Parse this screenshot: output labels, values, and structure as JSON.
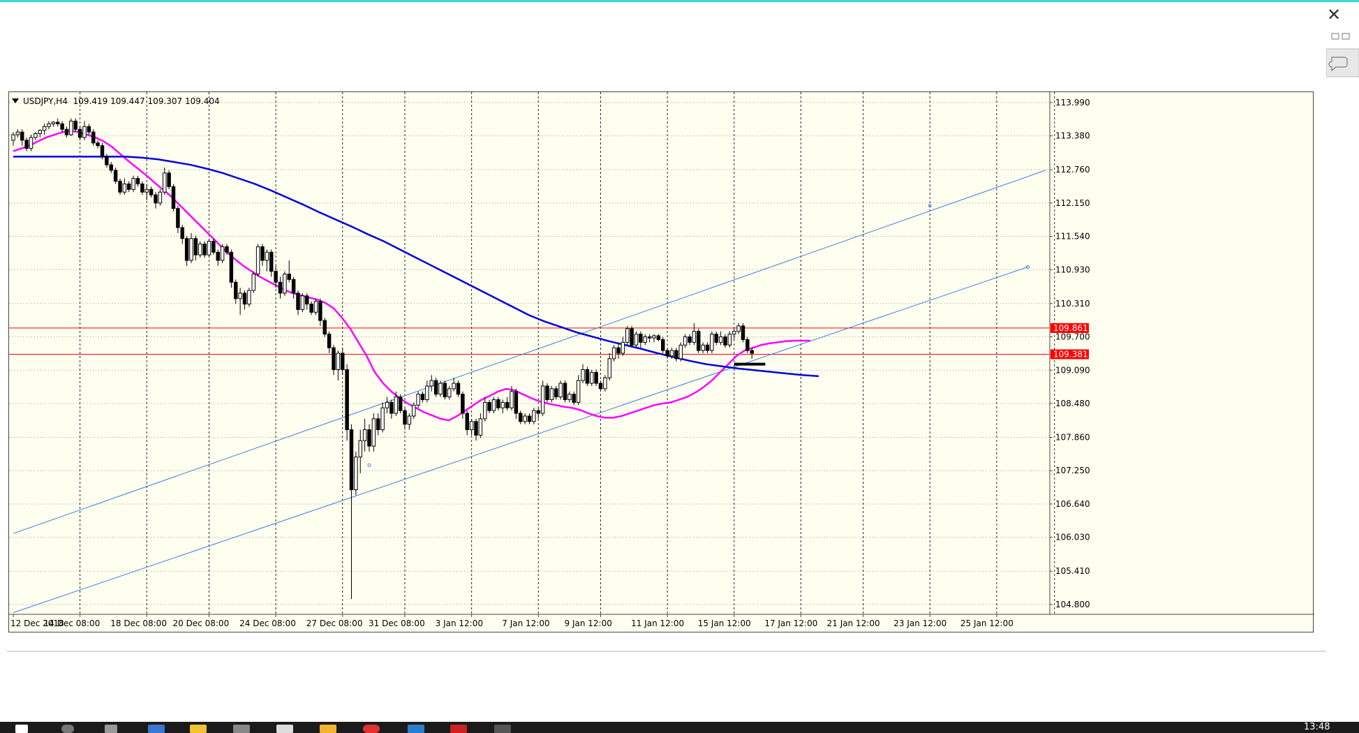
{
  "window": {
    "close_icon": "close-icon",
    "accent_color": "#3fd6d6"
  },
  "chart_header": {
    "symbol": "USDJPY,H4",
    "open": "109.419",
    "high": "109.447",
    "low": "109.307",
    "close": "109.404"
  },
  "price_markers": [
    {
      "label": "109.861",
      "value": 109.861,
      "color": "#ff0000"
    },
    {
      "label": "109.381",
      "value": 109.381,
      "color": "#ff0000"
    }
  ],
  "taskbar": {
    "clock": "13:48"
  },
  "chart_data": {
    "type": "candlestick",
    "title": "",
    "xlabel": "",
    "ylabel": "",
    "grid": true,
    "background": "#fffff0",
    "ylim": [
      104.62,
      114.18
    ],
    "y_ticks": [
      "113.990",
      "113.380",
      "112.760",
      "112.150",
      "111.540",
      "110.930",
      "110.310",
      "109.700",
      "109.090",
      "108.480",
      "107.860",
      "107.250",
      "106.640",
      "106.030",
      "105.410",
      "104.800"
    ],
    "x_ticks": [
      "12 Dec 2018",
      "14 Dec 08:00",
      "18 Dec 08:00",
      "20 Dec 08:00",
      "24 Dec 08:00",
      "27 Dec 08:00",
      "31 Dec 08:00",
      "3 Jan 12:00",
      "7 Jan 12:00",
      "9 Jan 12:00",
      "11 Jan 12:00",
      "15 Jan 12:00",
      "17 Jan 12:00",
      "21 Jan 12:00",
      "23 Jan 12:00",
      "25 Jan 12:00"
    ],
    "bars_count": 232,
    "candles": [
      [
        113.3,
        113.45,
        113.2,
        113.4
      ],
      [
        113.4,
        113.5,
        113.35,
        113.45
      ],
      [
        113.45,
        113.5,
        113.2,
        113.3
      ],
      [
        113.3,
        113.35,
        113.1,
        113.15
      ],
      [
        113.15,
        113.4,
        113.1,
        113.35
      ],
      [
        113.35,
        113.45,
        113.3,
        113.42
      ],
      [
        113.42,
        113.5,
        113.35,
        113.48
      ],
      [
        113.48,
        113.6,
        113.4,
        113.55
      ],
      [
        113.55,
        113.65,
        113.5,
        113.6
      ],
      [
        113.6,
        113.65,
        113.55,
        113.63
      ],
      [
        113.63,
        113.7,
        113.55,
        113.6
      ],
      [
        113.6,
        113.65,
        113.45,
        113.5
      ],
      [
        113.5,
        113.55,
        113.35,
        113.4
      ],
      [
        113.4,
        113.7,
        113.38,
        113.65
      ],
      [
        113.65,
        113.7,
        113.45,
        113.5
      ],
      [
        113.5,
        113.55,
        113.3,
        113.35
      ],
      [
        113.35,
        113.65,
        113.3,
        113.55
      ],
      [
        113.55,
        113.6,
        113.4,
        113.45
      ],
      [
        113.45,
        113.5,
        113.2,
        113.25
      ],
      [
        113.25,
        113.3,
        113.15,
        113.2
      ],
      [
        113.2,
        113.25,
        112.95,
        113.0
      ],
      [
        113.0,
        113.05,
        112.8,
        112.85
      ],
      [
        112.85,
        112.9,
        112.7,
        112.75
      ],
      [
        112.75,
        112.8,
        112.5,
        112.55
      ],
      [
        112.55,
        112.6,
        112.3,
        112.35
      ],
      [
        112.35,
        112.6,
        112.3,
        112.5
      ],
      [
        112.5,
        112.55,
        112.35,
        112.4
      ],
      [
        112.4,
        112.65,
        112.35,
        112.6
      ],
      [
        112.6,
        112.65,
        112.45,
        112.5
      ],
      [
        112.5,
        112.55,
        112.3,
        112.35
      ],
      [
        112.35,
        112.5,
        112.2,
        112.4
      ],
      [
        112.4,
        112.45,
        112.25,
        112.3
      ],
      [
        112.3,
        112.35,
        112.05,
        112.15
      ],
      [
        112.15,
        112.4,
        112.1,
        112.35
      ],
      [
        112.35,
        112.8,
        112.3,
        112.7
      ],
      [
        112.7,
        112.75,
        112.4,
        112.45
      ],
      [
        112.45,
        112.5,
        112.0,
        112.05
      ],
      [
        112.05,
        112.1,
        111.6,
        111.7
      ],
      [
        111.7,
        111.75,
        111.4,
        111.5
      ],
      [
        111.5,
        111.55,
        111.0,
        111.1
      ],
      [
        111.1,
        111.6,
        111.05,
        111.5
      ],
      [
        111.5,
        111.55,
        111.1,
        111.2
      ],
      [
        111.2,
        111.45,
        111.15,
        111.4
      ],
      [
        111.4,
        111.45,
        111.15,
        111.2
      ],
      [
        111.2,
        111.5,
        111.15,
        111.45
      ],
      [
        111.45,
        111.5,
        111.2,
        111.25
      ],
      [
        111.25,
        111.3,
        111.0,
        111.1
      ],
      [
        111.1,
        111.4,
        111.05,
        111.35
      ],
      [
        111.35,
        111.4,
        111.2,
        111.25
      ],
      [
        111.25,
        111.3,
        110.6,
        110.7
      ],
      [
        110.7,
        110.75,
        110.3,
        110.4
      ],
      [
        110.4,
        110.6,
        110.1,
        110.5
      ],
      [
        110.5,
        110.55,
        110.2,
        110.3
      ],
      [
        110.3,
        110.6,
        110.25,
        110.55
      ],
      [
        110.55,
        110.9,
        110.5,
        110.85
      ],
      [
        110.85,
        111.4,
        110.8,
        111.35
      ],
      [
        111.35,
        111.4,
        111.0,
        111.1
      ],
      [
        111.1,
        111.3,
        110.9,
        111.25
      ],
      [
        111.25,
        111.3,
        110.8,
        110.9
      ],
      [
        110.9,
        111.0,
        110.6,
        110.7
      ],
      [
        110.7,
        110.8,
        110.4,
        110.5
      ],
      [
        110.5,
        110.9,
        110.45,
        110.85
      ],
      [
        110.85,
        111.1,
        110.7,
        110.75
      ],
      [
        110.75,
        110.8,
        110.4,
        110.5
      ],
      [
        110.5,
        110.55,
        110.1,
        110.2
      ],
      [
        110.2,
        110.5,
        110.15,
        110.45
      ],
      [
        110.45,
        110.5,
        110.2,
        110.3
      ],
      [
        110.3,
        110.35,
        110.1,
        110.15
      ],
      [
        110.15,
        110.4,
        110.1,
        110.35
      ],
      [
        110.35,
        110.4,
        109.9,
        110.0
      ],
      [
        110.0,
        110.05,
        109.7,
        109.75
      ],
      [
        109.75,
        109.8,
        109.4,
        109.5
      ],
      [
        109.5,
        109.55,
        109.0,
        109.1
      ],
      [
        109.1,
        109.45,
        108.9,
        109.4
      ],
      [
        109.4,
        109.5,
        109.0,
        109.1
      ],
      [
        109.1,
        109.2,
        107.8,
        108.0
      ],
      [
        108.0,
        108.1,
        104.9,
        106.9
      ],
      [
        106.9,
        107.6,
        106.8,
        107.5
      ],
      [
        107.5,
        108.0,
        107.2,
        107.8
      ],
      [
        107.8,
        108.2,
        107.6,
        108.0
      ],
      [
        108.0,
        108.1,
        107.6,
        107.7
      ],
      [
        107.7,
        108.3,
        107.6,
        108.2
      ],
      [
        108.2,
        108.3,
        107.9,
        108.0
      ],
      [
        108.0,
        108.5,
        107.95,
        108.4
      ],
      [
        108.4,
        108.6,
        108.3,
        108.5
      ],
      [
        108.5,
        108.55,
        108.2,
        108.3
      ],
      [
        108.3,
        108.7,
        108.25,
        108.6
      ],
      [
        108.6,
        108.65,
        108.3,
        108.35
      ],
      [
        108.35,
        108.4,
        108.0,
        108.1
      ],
      [
        108.1,
        108.3,
        108.0,
        108.25
      ],
      [
        108.25,
        108.5,
        108.2,
        108.45
      ],
      [
        108.45,
        108.7,
        108.4,
        108.65
      ],
      [
        108.65,
        108.7,
        108.5,
        108.55
      ],
      [
        108.55,
        108.9,
        108.5,
        108.8
      ],
      [
        108.8,
        109.0,
        108.7,
        108.9
      ],
      [
        108.9,
        108.95,
        108.6,
        108.65
      ],
      [
        108.65,
        108.9,
        108.6,
        108.85
      ],
      [
        108.85,
        108.9,
        108.55,
        108.6
      ],
      [
        108.6,
        108.8,
        108.55,
        108.75
      ],
      [
        108.75,
        108.95,
        108.7,
        108.85
      ],
      [
        108.85,
        108.9,
        108.6,
        108.65
      ],
      [
        108.65,
        108.7,
        108.2,
        108.3
      ],
      [
        108.3,
        108.35,
        107.9,
        108.0
      ],
      [
        108.0,
        108.2,
        107.9,
        108.15
      ],
      [
        108.15,
        108.2,
        107.8,
        107.9
      ],
      [
        107.9,
        108.3,
        107.85,
        108.2
      ],
      [
        108.2,
        108.6,
        108.15,
        108.5
      ],
      [
        108.5,
        108.55,
        108.3,
        108.35
      ],
      [
        108.35,
        108.6,
        108.3,
        108.55
      ],
      [
        108.55,
        108.6,
        108.35,
        108.4
      ],
      [
        108.4,
        108.55,
        108.3,
        108.5
      ],
      [
        108.5,
        108.6,
        108.35,
        108.4
      ],
      [
        108.4,
        108.8,
        108.35,
        108.7
      ],
      [
        108.7,
        108.75,
        108.2,
        108.3
      ],
      [
        108.3,
        108.35,
        108.1,
        108.15
      ],
      [
        108.15,
        108.3,
        108.1,
        108.25
      ],
      [
        108.25,
        108.3,
        108.1,
        108.15
      ],
      [
        108.15,
        108.4,
        108.1,
        108.35
      ],
      [
        108.35,
        108.4,
        108.2,
        108.3
      ],
      [
        108.3,
        108.9,
        108.25,
        108.8
      ],
      [
        108.8,
        108.85,
        108.5,
        108.55
      ],
      [
        108.55,
        108.8,
        108.5,
        108.75
      ],
      [
        108.75,
        108.8,
        108.55,
        108.6
      ],
      [
        108.6,
        108.9,
        108.55,
        108.85
      ],
      [
        108.85,
        108.9,
        108.5,
        108.55
      ],
      [
        108.55,
        108.7,
        108.5,
        108.65
      ],
      [
        108.65,
        108.7,
        108.45,
        108.5
      ],
      [
        108.5,
        109.0,
        108.45,
        108.9
      ],
      [
        108.9,
        109.2,
        108.85,
        109.1
      ],
      [
        109.1,
        109.15,
        108.8,
        108.85
      ],
      [
        108.85,
        109.1,
        108.8,
        109.05
      ],
      [
        109.05,
        109.1,
        108.8,
        108.85
      ],
      [
        108.85,
        108.9,
        108.7,
        108.75
      ],
      [
        108.75,
        109.0,
        108.7,
        108.95
      ],
      [
        108.95,
        109.4,
        108.9,
        109.3
      ],
      [
        109.3,
        109.55,
        109.25,
        109.5
      ],
      [
        109.5,
        109.6,
        109.3,
        109.4
      ],
      [
        109.4,
        109.7,
        109.35,
        109.6
      ],
      [
        109.6,
        109.9,
        109.55,
        109.85
      ],
      [
        109.85,
        109.9,
        109.5,
        109.55
      ],
      [
        109.55,
        109.8,
        109.5,
        109.75
      ],
      [
        109.75,
        109.8,
        109.5,
        109.6
      ],
      [
        109.6,
        109.75,
        109.55,
        109.7
      ],
      [
        109.7,
        109.75,
        109.6,
        109.68
      ],
      [
        109.68,
        109.75,
        109.6,
        109.72
      ],
      [
        109.72,
        109.75,
        109.62,
        109.65
      ],
      [
        109.65,
        109.7,
        109.4,
        109.45
      ],
      [
        109.45,
        109.5,
        109.3,
        109.35
      ],
      [
        109.35,
        109.5,
        109.3,
        109.45
      ],
      [
        109.45,
        109.5,
        109.25,
        109.3
      ],
      [
        109.3,
        109.6,
        109.25,
        109.55
      ],
      [
        109.55,
        109.75,
        109.5,
        109.7
      ],
      [
        109.7,
        109.75,
        109.55,
        109.6
      ],
      [
        109.6,
        109.95,
        109.55,
        109.8
      ],
      [
        109.8,
        109.85,
        109.4,
        109.45
      ],
      [
        109.45,
        109.6,
        109.4,
        109.55
      ],
      [
        109.55,
        109.6,
        109.4,
        109.45
      ],
      [
        109.45,
        109.8,
        109.4,
        109.75
      ],
      [
        109.75,
        109.8,
        109.55,
        109.6
      ],
      [
        109.6,
        109.8,
        109.55,
        109.7
      ],
      [
        109.7,
        109.75,
        109.5,
        109.55
      ],
      [
        109.55,
        109.8,
        109.5,
        109.75
      ],
      [
        109.75,
        109.85,
        109.65,
        109.8
      ],
      [
        109.8,
        109.95,
        109.75,
        109.9
      ],
      [
        109.9,
        109.95,
        109.6,
        109.65
      ],
      [
        109.65,
        109.7,
        109.4,
        109.45
      ],
      [
        109.45,
        109.5,
        109.3,
        109.4
      ]
    ],
    "series": [
      {
        "name": "",
        "color": "#ff00ff",
        "values": [
          113.1,
          113.15,
          113.2,
          113.28,
          113.35,
          113.4,
          113.45,
          113.47,
          113.45,
          113.4,
          113.35,
          113.28,
          113.18,
          113.05,
          112.92,
          112.8,
          112.68,
          112.55,
          112.42,
          112.3,
          112.15,
          112.0,
          111.85,
          111.7,
          111.55,
          111.4,
          111.25,
          111.12,
          111.0,
          110.9,
          110.8,
          110.72,
          110.64,
          110.56,
          110.5,
          110.46,
          110.42,
          110.38,
          110.32,
          110.22,
          110.05,
          109.85,
          109.6,
          109.35,
          109.05,
          108.85,
          108.7,
          108.58,
          108.48,
          108.4,
          108.32,
          108.26,
          108.2,
          108.17,
          108.25,
          108.35,
          108.45,
          108.55,
          108.62,
          108.7,
          108.75,
          108.72,
          108.65,
          108.58,
          108.52,
          108.48,
          108.45,
          108.42,
          108.4,
          108.36,
          108.3,
          108.25,
          108.22,
          108.22,
          108.25,
          108.3,
          108.35,
          108.4,
          108.45,
          108.48,
          108.5,
          108.55,
          108.6,
          108.68,
          108.78,
          108.9,
          109.05,
          109.2,
          109.35,
          109.45,
          109.5,
          109.55,
          109.58,
          109.6,
          109.62,
          109.63,
          109.63,
          109.63
        ]
      },
      {
        "name": "",
        "color": "#0000dd",
        "values": [
          113.0,
          113.0,
          113.0,
          113.0,
          113.0,
          113.0,
          113.0,
          113.0,
          112.98,
          112.95,
          112.9,
          112.85,
          112.78,
          112.7,
          112.6,
          112.5,
          112.38,
          112.25,
          112.12,
          111.98,
          111.85,
          111.72,
          111.58,
          111.45,
          111.3,
          111.15,
          111.0,
          110.85,
          110.7,
          110.55,
          110.4,
          110.25,
          110.1,
          109.98,
          109.88,
          109.78,
          109.7,
          109.62,
          109.55,
          109.48,
          109.4,
          109.33,
          109.26,
          109.2,
          109.16,
          109.12,
          109.09,
          109.06,
          109.03,
          109.0,
          108.98
        ]
      }
    ],
    "horizontal_lines": [
      109.861,
      109.381
    ],
    "trend_lines": [
      {
        "from": [
          0,
          106.1
        ],
        "to": [
          232,
          112.75
        ],
        "color": "#3a7fd6"
      },
      {
        "from": [
          0,
          104.65
        ],
        "to": [
          228,
          110.98
        ],
        "color": "#3a7fd6"
      }
    ],
    "black_segment": {
      "from": [
        162,
        109.2
      ],
      "to": [
        169,
        109.2
      ]
    }
  }
}
